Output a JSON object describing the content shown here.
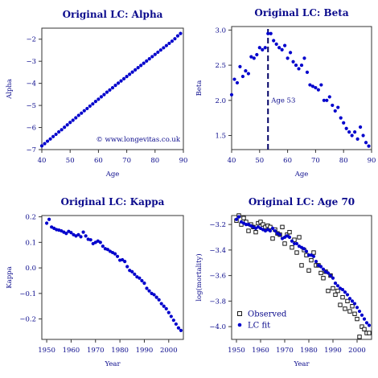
{
  "colors": {
    "accent": "#0000cc",
    "text": "#0a0a8c",
    "observed": "#000000"
  },
  "chart_data": [
    {
      "type": "scatter",
      "title": "Original LC: Alpha",
      "xlabel": "Age",
      "ylabel": "Alpha",
      "xlim": [
        40,
        90
      ],
      "ylim": [
        -7,
        -1.5
      ],
      "xticks": [
        40,
        50,
        60,
        70,
        80,
        90
      ],
      "yticks": [
        -7,
        -6,
        -5,
        -4,
        -3,
        -2
      ],
      "annotation": "© www.longevitas.co.uk",
      "series": [
        {
          "x": [
            40,
            41,
            42,
            43,
            44,
            45,
            46,
            47,
            48,
            49,
            50,
            51,
            52,
            53,
            54,
            55,
            56,
            57,
            58,
            59,
            60,
            61,
            62,
            63,
            64,
            65,
            66,
            67,
            68,
            69,
            70,
            71,
            72,
            73,
            74,
            75,
            76,
            77,
            78,
            79,
            80,
            81,
            82,
            83,
            84,
            85,
            86,
            87,
            88,
            89
          ],
          "y": [
            -6.83,
            -6.73,
            -6.62,
            -6.52,
            -6.41,
            -6.31,
            -6.2,
            -6.1,
            -5.99,
            -5.88,
            -5.77,
            -5.67,
            -5.56,
            -5.45,
            -5.35,
            -5.24,
            -5.14,
            -5.03,
            -4.93,
            -4.82,
            -4.72,
            -4.61,
            -4.51,
            -4.4,
            -4.3,
            -4.2,
            -4.09,
            -3.99,
            -3.89,
            -3.79,
            -3.69,
            -3.59,
            -3.49,
            -3.39,
            -3.29,
            -3.19,
            -3.09,
            -2.99,
            -2.89,
            -2.79,
            -2.69,
            -2.59,
            -2.49,
            -2.39,
            -2.29,
            -2.19,
            -2.09,
            -1.98,
            -1.85,
            -1.74
          ]
        }
      ]
    },
    {
      "type": "scatter",
      "title": "Original LC: Beta",
      "xlabel": "Age",
      "ylabel": "Beta",
      "xlim": [
        40,
        90
      ],
      "ylim": [
        1.3,
        3.05
      ],
      "xticks": [
        40,
        50,
        60,
        70,
        80,
        90
      ],
      "yticks": [
        1.5,
        2.0,
        2.5,
        3.0
      ],
      "vline": {
        "x": 53,
        "label": "Age 53"
      },
      "series": [
        {
          "x": [
            40,
            41,
            42,
            43,
            44,
            45,
            46,
            47,
            48,
            49,
            50,
            51,
            52,
            53,
            54,
            55,
            56,
            57,
            58,
            59,
            60,
            61,
            62,
            63,
            64,
            65,
            66,
            67,
            68,
            69,
            70,
            71,
            72,
            73,
            74,
            75,
            76,
            77,
            78,
            79,
            80,
            81,
            82,
            83,
            84,
            85,
            86,
            87,
            88,
            89
          ],
          "y": [
            2.08,
            2.3,
            2.25,
            2.48,
            2.34,
            2.42,
            2.38,
            2.62,
            2.6,
            2.65,
            2.75,
            2.72,
            2.75,
            2.95,
            2.95,
            2.85,
            2.8,
            2.75,
            2.72,
            2.78,
            2.6,
            2.68,
            2.55,
            2.5,
            2.45,
            2.5,
            2.6,
            2.4,
            2.22,
            2.2,
            2.18,
            2.15,
            2.22,
            2.0,
            2.0,
            2.05,
            1.93,
            1.85,
            1.9,
            1.75,
            1.68,
            1.6,
            1.55,
            1.5,
            1.55,
            1.45,
            1.62,
            1.5,
            1.4,
            1.35
          ]
        }
      ]
    },
    {
      "type": "scatter",
      "title": "Original LC: Kappa",
      "xlabel": "Year",
      "ylabel": "Kappa",
      "xlim": [
        1948,
        2006
      ],
      "ylim": [
        -0.28,
        0.205
      ],
      "xticks": [
        1950,
        1960,
        1970,
        1980,
        1990,
        2000
      ],
      "yticks": [
        -0.2,
        -0.1,
        0.0,
        0.1,
        0.2
      ],
      "series": [
        {
          "x": [
            1950,
            1951,
            1952,
            1953,
            1954,
            1955,
            1956,
            1957,
            1958,
            1959,
            1960,
            1961,
            1962,
            1963,
            1964,
            1965,
            1966,
            1967,
            1968,
            1969,
            1970,
            1971,
            1972,
            1973,
            1974,
            1975,
            1976,
            1977,
            1978,
            1979,
            1980,
            1981,
            1982,
            1983,
            1984,
            1985,
            1986,
            1987,
            1988,
            1989,
            1990,
            1991,
            1992,
            1993,
            1994,
            1995,
            1996,
            1997,
            1998,
            1999,
            2000,
            2001,
            2002,
            2003,
            2004,
            2005
          ],
          "y": [
            0.175,
            0.19,
            0.16,
            0.155,
            0.15,
            0.148,
            0.145,
            0.14,
            0.135,
            0.143,
            0.138,
            0.13,
            0.125,
            0.13,
            0.122,
            0.14,
            0.125,
            0.112,
            0.11,
            0.095,
            0.1,
            0.105,
            0.1,
            0.085,
            0.075,
            0.072,
            0.065,
            0.06,
            0.055,
            0.045,
            0.03,
            0.032,
            0.025,
            0.005,
            -0.01,
            -0.015,
            -0.025,
            -0.035,
            -0.04,
            -0.05,
            -0.06,
            -0.08,
            -0.09,
            -0.1,
            -0.105,
            -0.115,
            -0.125,
            -0.14,
            -0.15,
            -0.16,
            -0.175,
            -0.19,
            -0.205,
            -0.22,
            -0.235,
            -0.245
          ]
        }
      ]
    },
    {
      "type": "scatter",
      "title": "Original LC: Age 70",
      "xlabel": "Year",
      "ylabel": "log(mortality)",
      "xlim": [
        1948,
        2006
      ],
      "ylim": [
        -4.1,
        -3.13
      ],
      "xticks": [
        1950,
        1960,
        1970,
        1980,
        1990,
        2000
      ],
      "yticks": [
        -4.0,
        -3.8,
        -3.6,
        -3.4,
        -3.2
      ],
      "legend": "bottom-left",
      "series": [
        {
          "name": "Observed",
          "marker": "open-square",
          "x": [
            1950,
            1951,
            1952,
            1953,
            1954,
            1955,
            1956,
            1957,
            1958,
            1959,
            1960,
            1961,
            1962,
            1963,
            1964,
            1965,
            1966,
            1967,
            1968,
            1969,
            1970,
            1971,
            1972,
            1973,
            1974,
            1975,
            1976,
            1977,
            1978,
            1979,
            1980,
            1981,
            1982,
            1983,
            1984,
            1985,
            1986,
            1987,
            1988,
            1989,
            1990,
            1991,
            1992,
            1993,
            1994,
            1995,
            1996,
            1997,
            1998,
            1999,
            2000,
            2001,
            2002,
            2003,
            2004,
            2005
          ],
          "y": [
            -3.17,
            -3.13,
            -3.2,
            -3.15,
            -3.18,
            -3.25,
            -3.2,
            -3.22,
            -3.26,
            -3.19,
            -3.18,
            -3.2,
            -3.22,
            -3.21,
            -3.22,
            -3.31,
            -3.24,
            -3.27,
            -3.28,
            -3.22,
            -3.35,
            -3.28,
            -3.26,
            -3.38,
            -3.32,
            -3.42,
            -3.3,
            -3.52,
            -3.4,
            -3.44,
            -3.56,
            -3.48,
            -3.42,
            -3.52,
            -3.52,
            -3.58,
            -3.62,
            -3.57,
            -3.72,
            -3.6,
            -3.7,
            -3.75,
            -3.72,
            -3.83,
            -3.77,
            -3.86,
            -3.8,
            -3.88,
            -3.84,
            -3.9,
            -3.94,
            -4.08,
            -4.0,
            -4.02,
            -4.05,
            -4.05
          ]
        },
        {
          "name": "LC fit",
          "marker": "filled-circle",
          "x": [
            1950,
            1951,
            1952,
            1953,
            1954,
            1955,
            1956,
            1957,
            1958,
            1959,
            1960,
            1961,
            1962,
            1963,
            1964,
            1965,
            1966,
            1967,
            1968,
            1969,
            1970,
            1971,
            1972,
            1973,
            1974,
            1975,
            1976,
            1977,
            1978,
            1979,
            1980,
            1981,
            1982,
            1983,
            1984,
            1985,
            1986,
            1987,
            1988,
            1989,
            1990,
            1991,
            1992,
            1993,
            1994,
            1995,
            1996,
            1997,
            1998,
            1999,
            2000,
            2001,
            2002,
            2003,
            2004,
            2005
          ],
          "y": [
            -3.16,
            -3.14,
            -3.18,
            -3.19,
            -3.2,
            -3.2,
            -3.21,
            -3.22,
            -3.23,
            -3.22,
            -3.23,
            -3.24,
            -3.25,
            -3.24,
            -3.25,
            -3.23,
            -3.25,
            -3.27,
            -3.28,
            -3.31,
            -3.3,
            -3.29,
            -3.3,
            -3.33,
            -3.35,
            -3.35,
            -3.37,
            -3.38,
            -3.39,
            -3.41,
            -3.44,
            -3.44,
            -3.45,
            -3.49,
            -3.52,
            -3.53,
            -3.55,
            -3.57,
            -3.58,
            -3.6,
            -3.62,
            -3.66,
            -3.68,
            -3.7,
            -3.71,
            -3.73,
            -3.75,
            -3.78,
            -3.8,
            -3.82,
            -3.85,
            -3.88,
            -3.91,
            -3.94,
            -3.97,
            -3.99
          ]
        }
      ]
    }
  ]
}
